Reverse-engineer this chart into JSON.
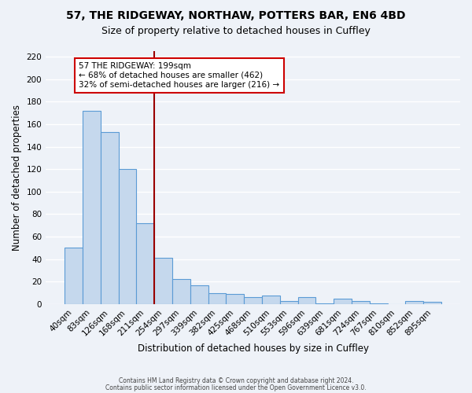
{
  "title1": "57, THE RIDGEWAY, NORTHAW, POTTERS BAR, EN6 4BD",
  "title2": "Size of property relative to detached houses in Cuffley",
  "xlabel": "Distribution of detached houses by size in Cuffley",
  "ylabel": "Number of detached properties",
  "bar_labels": [
    "40sqm",
    "83sqm",
    "126sqm",
    "168sqm",
    "211sqm",
    "254sqm",
    "297sqm",
    "339sqm",
    "382sqm",
    "425sqm",
    "468sqm",
    "510sqm",
    "553sqm",
    "596sqm",
    "639sqm",
    "681sqm",
    "724sqm",
    "767sqm",
    "810sqm",
    "852sqm",
    "895sqm"
  ],
  "bar_values": [
    50,
    172,
    153,
    120,
    72,
    41,
    22,
    17,
    10,
    9,
    6,
    8,
    3,
    6,
    1,
    5,
    3,
    1,
    0,
    3,
    2
  ],
  "bar_color": "#c5d8ed",
  "bar_edge_color": "#5b9bd5",
  "background_color": "#eef2f8",
  "grid_color": "#ffffff",
  "vline_index": 4.5,
  "vline_color": "#990000",
  "ylim": [
    0,
    225
  ],
  "yticks": [
    0,
    20,
    40,
    60,
    80,
    100,
    120,
    140,
    160,
    180,
    200,
    220
  ],
  "annotation_line1": "57 THE RIDGEWAY: 199sqm",
  "annotation_line2": "← 68% of detached houses are smaller (462)",
  "annotation_line3": "32% of semi-detached houses are larger (216) →",
  "annotation_box_color": "#ffffff",
  "annotation_box_edge": "#cc0000",
  "footer1": "Contains HM Land Registry data © Crown copyright and database right 2024.",
  "footer2": "Contains public sector information licensed under the Open Government Licence v3.0."
}
